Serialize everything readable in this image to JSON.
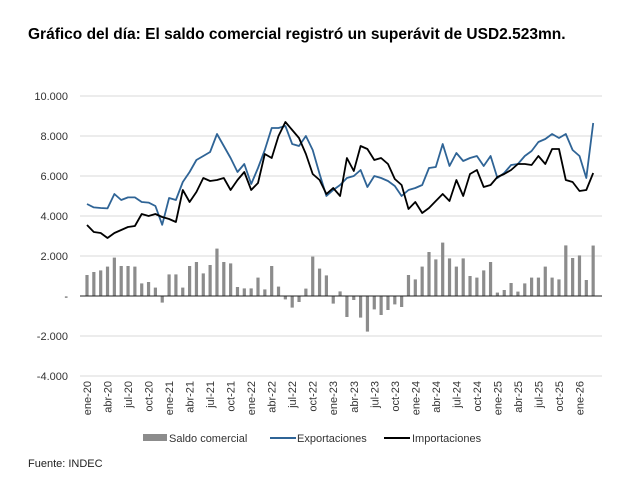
{
  "chart_data": {
    "type": "bar+line",
    "title": "Gráfico del día: El saldo comercial registró un superávit de USD2.523mn.",
    "source": "Fuente: INDEC",
    "ylim": [
      -4000,
      10000
    ],
    "yticks": [
      10000,
      8000,
      6000,
      4000,
      2000,
      0,
      -2000,
      -4000
    ],
    "ytick_labels": [
      "10.000",
      "8.000",
      "6.000",
      "4.000",
      "2.000",
      "-",
      "-2.000",
      "-4.000"
    ],
    "xtick_labels": [
      "ene-20",
      "abr-20",
      "jul-20",
      "oct-20",
      "ene-21",
      "abr-21",
      "jul-21",
      "oct-21",
      "ene-22",
      "abr-22",
      "jul-22",
      "oct-22",
      "ene-23",
      "abr-23",
      "jul-23",
      "oct-23",
      "ene-24",
      "abr-24",
      "jul-24",
      "oct-24",
      "ene-25",
      "abr-25",
      "jul-25",
      "oct-25",
      "ene-26"
    ],
    "grid": true,
    "legend": "bottom",
    "series": [
      {
        "name": "Saldo comercial",
        "type": "bar",
        "color": "#8c8c8c",
        "values": [
          1050,
          1200,
          1280,
          1470,
          1920,
          1500,
          1500,
          1470,
          630,
          700,
          420,
          -330,
          1080,
          1080,
          420,
          1500,
          1700,
          1130,
          1550,
          2370,
          1700,
          1630,
          450,
          380,
          380,
          920,
          330,
          1500,
          470,
          -170,
          -580,
          -300,
          370,
          1970,
          1370,
          1030,
          -380,
          230,
          -1050,
          -200,
          -1080,
          -1780,
          -670,
          -950,
          -700,
          -420,
          -550,
          1050,
          830,
          1470,
          2200,
          1830,
          2670,
          1880,
          1470,
          1880,
          1000,
          920,
          1280,
          1700,
          170,
          300,
          650,
          220,
          630,
          920,
          920,
          1470,
          920,
          830,
          2530,
          1900,
          2030,
          800,
          2523
        ]
      },
      {
        "name": "Exportaciones",
        "type": "line",
        "color": "#2f6496",
        "values": [
          4600,
          4430,
          4400,
          4380,
          5100,
          4800,
          4930,
          4930,
          4700,
          4670,
          4500,
          3560,
          4900,
          4800,
          5700,
          6200,
          6800,
          7000,
          7200,
          8100,
          7500,
          6900,
          6200,
          6600,
          5600,
          6400,
          7300,
          8400,
          8400,
          8500,
          7600,
          7500,
          8000,
          7300,
          6100,
          5000,
          5300,
          5550,
          5900,
          6000,
          6300,
          5450,
          6000,
          5900,
          5750,
          5500,
          5000,
          5300,
          5400,
          5550,
          6400,
          6450,
          7600,
          6500,
          7150,
          6750,
          6900,
          7000,
          6500,
          7000,
          5900,
          6150,
          6550,
          6600,
          7000,
          7250,
          7700,
          7850,
          8100,
          7900,
          8100,
          7300,
          7000,
          5900,
          8650
        ]
      },
      {
        "name": "Importaciones",
        "type": "line",
        "color": "#000000",
        "values": [
          3550,
          3200,
          3150,
          2900,
          3150,
          3300,
          3450,
          3500,
          4100,
          4000,
          4100,
          3950,
          3850,
          3700,
          5300,
          4700,
          5200,
          5900,
          5750,
          5800,
          5900,
          5300,
          5800,
          6200,
          5300,
          5650,
          7100,
          6900,
          8000,
          8700,
          8300,
          7900,
          7100,
          6100,
          5800,
          5100,
          5400,
          5000,
          6900,
          6250,
          7500,
          7350,
          6800,
          6900,
          6600,
          5850,
          5550,
          4350,
          4700,
          4150,
          4400,
          4750,
          5100,
          4750,
          5800,
          5000,
          6100,
          6300,
          5450,
          5550,
          5950,
          6100,
          6300,
          6600,
          6600,
          6550,
          7000,
          6600,
          7350,
          7350,
          5800,
          5700,
          5250,
          5300,
          6150
        ]
      }
    ]
  }
}
